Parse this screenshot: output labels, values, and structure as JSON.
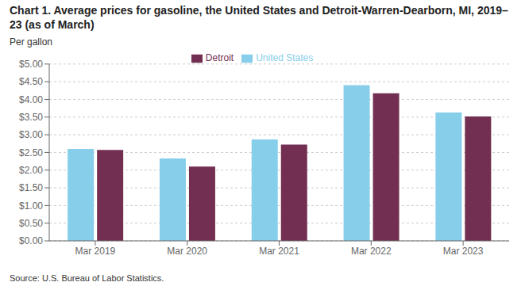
{
  "chart_data": {
    "type": "bar",
    "title": "Chart 1. Average prices for gasoline, the United States and Detroit-Warren-Dearborn, MI, 2019–23 (as of March)",
    "y_label": "Per gallon",
    "annotations": [
      "Source: U.S. Bureau of Labor Statistics."
    ],
    "categories": [
      "Mar 2019",
      "Mar 2020",
      "Mar 2021",
      "Mar 2022",
      "Mar 2023"
    ],
    "series": [
      {
        "name": "United States",
        "color": "#87CEEB",
        "values": [
          2.6,
          2.33,
          2.87,
          4.4,
          3.63
        ]
      },
      {
        "name": "Detroit",
        "color": "#722F52",
        "values": [
          2.57,
          2.1,
          2.72,
          4.17,
          3.52
        ]
      }
    ],
    "ylim": [
      0,
      5.0
    ],
    "yticks": [
      {
        "value": 0.0,
        "label": "$0.00"
      },
      {
        "value": 0.5,
        "label": "$0.50"
      },
      {
        "value": 1.0,
        "label": "$1.00"
      },
      {
        "value": 1.5,
        "label": "$1.50"
      },
      {
        "value": 2.0,
        "label": "$2.00"
      },
      {
        "value": 2.5,
        "label": "$2.50"
      },
      {
        "value": 3.0,
        "label": "$3.00"
      },
      {
        "value": 3.5,
        "label": "$3.50"
      },
      {
        "value": 4.0,
        "label": "$4.00"
      },
      {
        "value": 4.5,
        "label": "$4.50"
      },
      {
        "value": 5.0,
        "label": "$5.00"
      }
    ],
    "grid": true,
    "legend": "top"
  }
}
